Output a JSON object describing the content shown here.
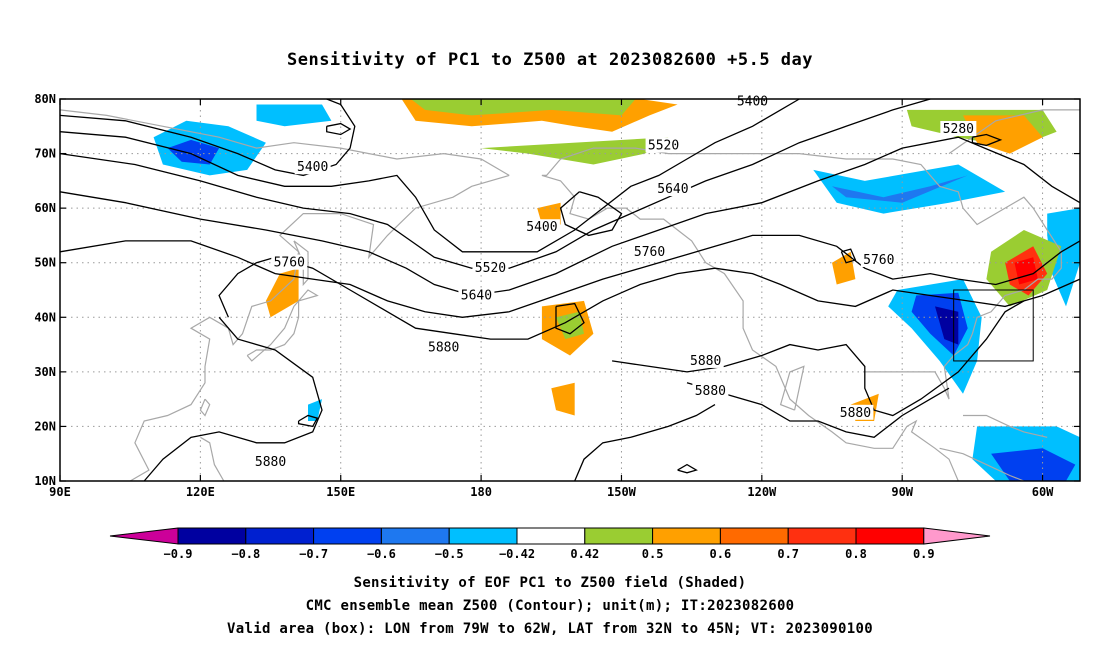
{
  "title": "Sensitivity of PC1 to Z500 at 2023082600 +5.5 day",
  "lat_labels": [
    "80N",
    "70N",
    "60N",
    "50N",
    "40N",
    "30N",
    "20N",
    "10N"
  ],
  "lon_labels": [
    "90E",
    "120E",
    "150E",
    "180",
    "150W",
    "120W",
    "90W",
    "60W"
  ],
  "contour_labels": [
    {
      "text": "5400",
      "lon": 238,
      "lat": 79.5
    },
    {
      "text": "5280",
      "lon": 282,
      "lat": 74.5
    },
    {
      "text": "5520",
      "lon": 219,
      "lat": 71.5
    },
    {
      "text": "5400",
      "lon": 144,
      "lat": 67.5
    },
    {
      "text": "5640",
      "lon": 221,
      "lat": 63.5
    },
    {
      "text": "5400",
      "lon": 193,
      "lat": 56.5
    },
    {
      "text": "5760",
      "lon": 139,
      "lat": 50.0
    },
    {
      "text": "5520",
      "lon": 182,
      "lat": 49.0
    },
    {
      "text": "5760",
      "lon": 216,
      "lat": 52.0
    },
    {
      "text": "5760",
      "lon": 265,
      "lat": 50.5
    },
    {
      "text": "5640",
      "lon": 179,
      "lat": 44.0
    },
    {
      "text": "5880",
      "lon": 172,
      "lat": 34.5
    },
    {
      "text": "5880",
      "lon": 228,
      "lat": 32.0
    },
    {
      "text": "5880",
      "lon": 229,
      "lat": 26.5
    },
    {
      "text": "5880",
      "lon": 260,
      "lat": 22.5
    },
    {
      "text": "5880",
      "lon": 135,
      "lat": 13.5
    }
  ],
  "colorbar": {
    "labels": [
      "-0.9",
      "-0.8",
      "-0.7",
      "-0.6",
      "-0.5",
      "-0.42",
      "0.42",
      "0.5",
      "0.6",
      "0.7",
      "0.8",
      "0.9"
    ],
    "colors": [
      "#0000a0",
      "#0020d0",
      "#0040f0",
      "#1e78f0",
      "#00bfff",
      "#ffffff",
      "#9acd32",
      "#ffa000",
      "#ff6a00",
      "#ff3010",
      "#ff0000"
    ],
    "under_color": "#cc0099",
    "over_color": "#ff99cc"
  },
  "captions": [
    "Sensitivity of EOF PC1 to Z500 field (Shaded)",
    "CMC ensemble mean Z500 (Contour); unit(m); IT:2023082600",
    "Valid area (box): LON from 79W to 62W, LAT from 32N to 45N; VT: 2023090100"
  ],
  "valid_box": {
    "lon_min": 281,
    "lon_max": 298,
    "lat_min": 32,
    "lat_max": 45
  }
}
